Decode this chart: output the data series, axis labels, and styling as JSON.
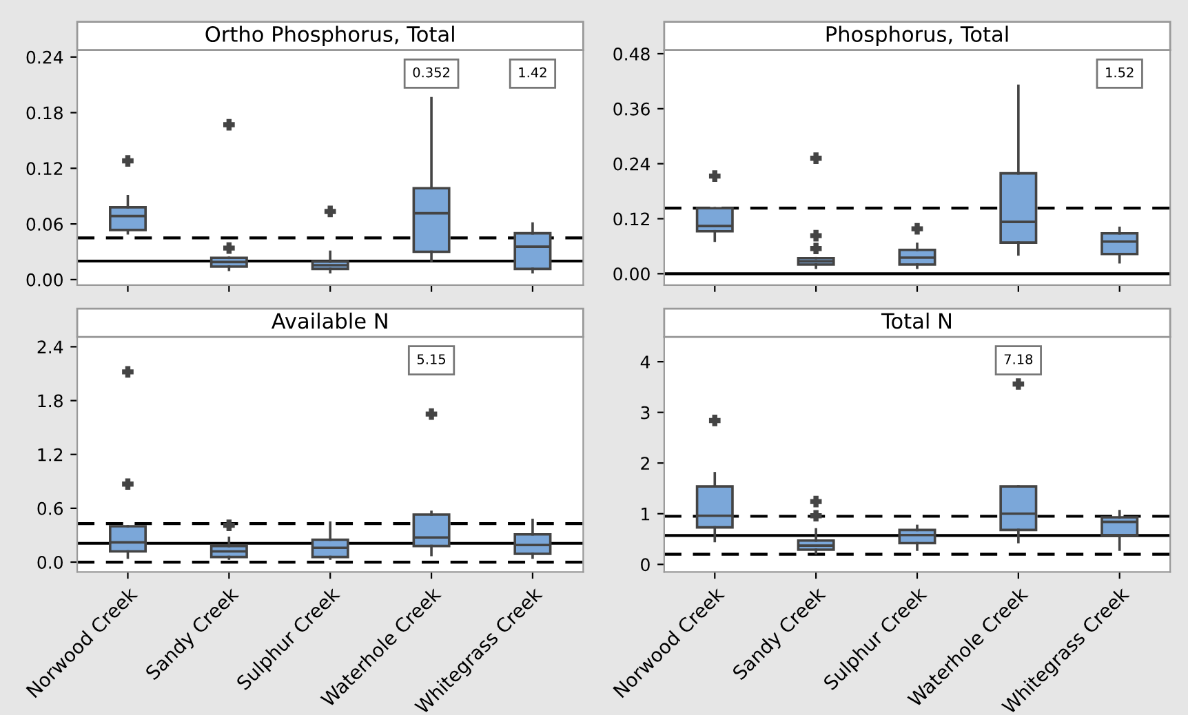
{
  "chart_data": [
    {
      "type": "box",
      "title": "Ortho Phosphorus, Total",
      "categories": [
        "Norwood Creek",
        "Sandy Creek",
        "Sulphur Creek",
        "Waterhole Creek",
        "Whitegrass Creek"
      ],
      "tick_labels": "y",
      "ylim": [
        -0.006,
        0.2475
      ],
      "yticks": [
        {
          "value": 0,
          "label": "0.00"
        },
        {
          "value": 0.06,
          "label": "0.06"
        },
        {
          "value": 0.12,
          "label": "0.12"
        },
        {
          "value": 0.18,
          "label": "0.18"
        },
        {
          "value": 0.24,
          "label": "0.24"
        }
      ],
      "grid": false,
      "legend": false,
      "color": "#7ba7d9",
      "boxes": [
        {
          "low": 0.05,
          "q1": 0.0535,
          "median": 0.0685,
          "q3": 0.078,
          "high": 0.09,
          "outliers": [
            0.128
          ]
        },
        {
          "low": 0.0105,
          "q1": 0.014,
          "median": 0.019,
          "q3": 0.0235,
          "high": 0.0235,
          "outliers": [
            0.034,
            0.167
          ]
        },
        {
          "low": 0.008,
          "q1": 0.0115,
          "median": 0.0155,
          "q3": 0.0195,
          "high": 0.03,
          "outliers": [
            0.0735
          ]
        },
        {
          "low": 0.0205,
          "q1": 0.03,
          "median": 0.0715,
          "q3": 0.0985,
          "high": 0.1955
        },
        {
          "low": 0.008,
          "q1": 0.0115,
          "median": 0.0355,
          "q3": 0.05,
          "high": 0.0605
        }
      ],
      "ref_lines": [
        {
          "axis": "y",
          "value": 0.045,
          "line_style": "dashed",
          "color": "#000000"
        },
        {
          "axis": "y",
          "value": 0.02,
          "line_style": "solid",
          "color": "#000000"
        }
      ],
      "annotations": [
        {
          "text": "0.352",
          "x": "Waterhole Creek"
        },
        {
          "text": "1.42",
          "x": "Whitegrass Creek"
        }
      ]
    },
    {
      "type": "box",
      "title": "Phosphorus, Total",
      "categories": [
        "Norwood Creek",
        "Sandy Creek",
        "Sulphur Creek",
        "Waterhole Creek",
        "Whitegrass Creek"
      ],
      "tick_labels": "y",
      "ylim": [
        -0.025,
        0.488
      ],
      "yticks": [
        {
          "value": 0,
          "label": "0.00"
        },
        {
          "value": 0.12,
          "label": "0.12"
        },
        {
          "value": 0.24,
          "label": "0.24"
        },
        {
          "value": 0.36,
          "label": "0.36"
        },
        {
          "value": 0.48,
          "label": "0.48"
        }
      ],
      "grid": false,
      "legend": false,
      "color": "#7ba7d9",
      "boxes": [
        {
          "low": 0.072,
          "q1": 0.0926,
          "median": 0.104,
          "q3": 0.143,
          "high": 0.143,
          "outliers": [
            0.213
          ]
        },
        {
          "low": 0.013,
          "q1": 0.02,
          "median": 0.027,
          "q3": 0.034,
          "high": 0.034,
          "outliers": [
            0.055,
            0.083,
            0.252
          ]
        },
        {
          "low": 0.013,
          "q1": 0.02,
          "median": 0.035,
          "q3": 0.052,
          "high": 0.065,
          "outliers": [
            0.098
          ]
        },
        {
          "low": 0.042,
          "q1": 0.068,
          "median": 0.113,
          "q3": 0.219,
          "high": 0.41
        },
        {
          "low": 0.025,
          "q1": 0.043,
          "median": 0.07,
          "q3": 0.088,
          "high": 0.1
        }
      ],
      "ref_lines": [
        {
          "axis": "y",
          "value": 0.143,
          "line_style": "dashed",
          "color": "#000000"
        },
        {
          "axis": "y",
          "value": 0.0,
          "line_style": "solid",
          "color": "#000000"
        }
      ],
      "annotations": [
        {
          "text": "1.52",
          "x": "Whitegrass Creek"
        }
      ]
    },
    {
      "type": "box",
      "title": "Available N",
      "categories": [
        "Norwood Creek",
        "Sandy Creek",
        "Sulphur Creek",
        "Waterhole Creek",
        "Whitegrass Creek"
      ],
      "ylim": [
        -0.11,
        2.51
      ],
      "yticks": [
        {
          "value": 0,
          "label": "0.0"
        },
        {
          "value": 0.6,
          "label": "0.6"
        },
        {
          "value": 1.2,
          "label": "1.2"
        },
        {
          "value": 1.8,
          "label": "1.8"
        },
        {
          "value": 2.4,
          "label": "2.4"
        }
      ],
      "grid": false,
      "legend": false,
      "color": "#7ba7d9",
      "boxes": [
        {
          "low": 0.05,
          "q1": 0.12,
          "median": 0.22,
          "q3": 0.4,
          "high": 0.4,
          "outliers": [
            0.87,
            2.12
          ]
        },
        {
          "low": 0.04,
          "q1": 0.057,
          "median": 0.12,
          "q3": 0.18,
          "high": 0.27,
          "outliers": [
            0.41
          ]
        },
        {
          "low": 0.04,
          "q1": 0.057,
          "median": 0.16,
          "q3": 0.25,
          "high": 0.44
        },
        {
          "low": 0.08,
          "q1": 0.18,
          "median": 0.275,
          "q3": 0.53,
          "high": 0.56,
          "outliers": [
            1.65
          ]
        },
        {
          "low": 0.05,
          "q1": 0.093,
          "median": 0.19,
          "q3": 0.31,
          "high": 0.47
        }
      ],
      "ref_lines": [
        {
          "axis": "y",
          "value": 0.43,
          "line_style": "dashed",
          "color": "#000000"
        },
        {
          "axis": "y",
          "value": 0.21,
          "line_style": "solid",
          "color": "#000000"
        },
        {
          "axis": "y",
          "value": 0.0,
          "line_style": "dashed",
          "color": "#000000"
        }
      ],
      "annotations": [
        {
          "text": "5.15",
          "x": "Waterhole Creek"
        }
      ]
    },
    {
      "type": "box",
      "title": "Total N",
      "categories": [
        "Norwood Creek",
        "Sandy Creek",
        "Sulphur Creek",
        "Waterhole Creek",
        "Whitegrass Creek"
      ],
      "ylim": [
        -0.15,
        4.49
      ],
      "yticks": [
        0,
        1,
        2,
        3,
        4
      ],
      "grid": false,
      "legend": false,
      "color": "#7ba7d9",
      "boxes": [
        {
          "low": 0.46,
          "q1": 0.73,
          "median": 0.96,
          "q3": 1.54,
          "high": 1.8,
          "outliers": [
            2.84
          ]
        },
        {
          "low": 0.22,
          "q1": 0.29,
          "median": 0.37,
          "q3": 0.47,
          "high": 0.69,
          "outliers": [
            0.96,
            1.24
          ]
        },
        {
          "low": 0.29,
          "q1": 0.42,
          "median": 0.58,
          "q3": 0.68,
          "high": 0.76
        },
        {
          "low": 0.44,
          "q1": 0.68,
          "median": 1.0,
          "q3": 1.54,
          "high": 1.54,
          "outliers": [
            3.56
          ]
        },
        {
          "low": 0.29,
          "q1": 0.58,
          "median": 0.84,
          "q3": 0.93,
          "high": 1.05
        }
      ],
      "ref_lines": [
        {
          "axis": "y",
          "value": 0.95,
          "line_style": "dashed",
          "color": "#000000"
        },
        {
          "axis": "y",
          "value": 0.57,
          "line_style": "solid",
          "color": "#000000"
        },
        {
          "axis": "y",
          "value": 0.2,
          "line_style": "dashed",
          "color": "#000000"
        }
      ],
      "annotations": [
        {
          "text": "7.18",
          "x": "Waterhole Creek"
        }
      ]
    }
  ]
}
